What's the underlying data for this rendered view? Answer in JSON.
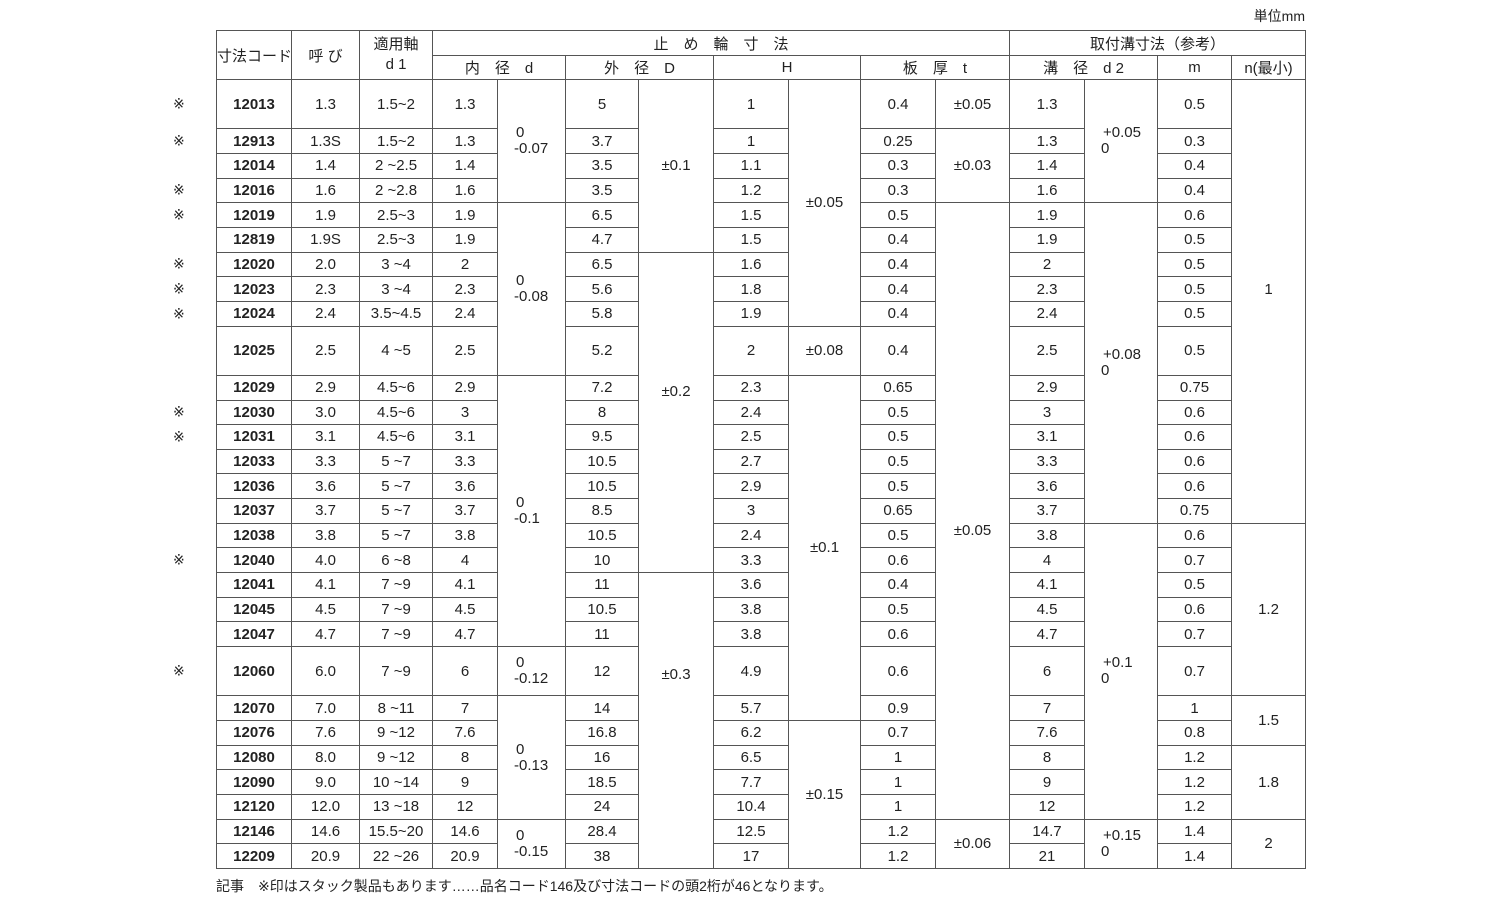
{
  "unit_label": "単位mm",
  "header": {
    "code": "寸法コード",
    "nominal": "呼 び",
    "shaft": "適用軸",
    "shaft_sym": "d 1",
    "ring_dims": "止　め　輪　寸　法",
    "groove_dims": "取付溝寸法（参考）",
    "inner": "内　径　d",
    "outer": "外　径　D",
    "h": "H",
    "thickness": "板　厚　t",
    "groove_dia": "溝　径　d 2",
    "m": "m",
    "n": "n(最小)"
  },
  "rows": [
    {
      "mark": "※",
      "code": "12013",
      "nominal": "1.3",
      "shaft": "1.5~2",
      "d": "1.3",
      "D": "5",
      "H": "1",
      "t": "0.4",
      "d2": "1.3",
      "m": "0.5",
      "tall": true
    },
    {
      "mark": "※",
      "code": "12913",
      "nominal": "1.3S",
      "shaft": "1.5~2",
      "d": "1.3",
      "D": "3.7",
      "H": "1",
      "t": "0.25",
      "d2": "1.3",
      "m": "0.3"
    },
    {
      "mark": "",
      "code": "12014",
      "nominal": "1.4",
      "shaft": "2 ~2.5",
      "d": "1.4",
      "D": "3.5",
      "H": "1.1",
      "t": "0.3",
      "d2": "1.4",
      "m": "0.4"
    },
    {
      "mark": "※",
      "code": "12016",
      "nominal": "1.6",
      "shaft": "2 ~2.8",
      "d": "1.6",
      "D": "3.5",
      "H": "1.2",
      "t": "0.3",
      "d2": "1.6",
      "m": "0.4"
    },
    {
      "mark": "※",
      "code": "12019",
      "nominal": "1.9",
      "shaft": "2.5~3",
      "d": "1.9",
      "D": "6.5",
      "H": "1.5",
      "t": "0.5",
      "d2": "1.9",
      "m": "0.6"
    },
    {
      "mark": "",
      "code": "12819",
      "nominal": "1.9S",
      "shaft": "2.5~3",
      "d": "1.9",
      "D": "4.7",
      "H": "1.5",
      "t": "0.4",
      "d2": "1.9",
      "m": "0.5"
    },
    {
      "mark": "※",
      "code": "12020",
      "nominal": "2.0",
      "shaft": "3 ~4",
      "d": "2",
      "D": "6.5",
      "H": "1.6",
      "t": "0.4",
      "d2": "2",
      "m": "0.5"
    },
    {
      "mark": "※",
      "code": "12023",
      "nominal": "2.3",
      "shaft": "3 ~4",
      "d": "2.3",
      "D": "5.6",
      "H": "1.8",
      "t": "0.4",
      "d2": "2.3",
      "m": "0.5"
    },
    {
      "mark": "※",
      "code": "12024",
      "nominal": "2.4",
      "shaft": "3.5~4.5",
      "d": "2.4",
      "D": "5.8",
      "H": "1.9",
      "t": "0.4",
      "d2": "2.4",
      "m": "0.5"
    },
    {
      "mark": "",
      "code": "12025",
      "nominal": "2.5",
      "shaft": "4 ~5",
      "d": "2.5",
      "D": "5.2",
      "H": "2",
      "t": "0.4",
      "d2": "2.5",
      "m": "0.5",
      "tall": true
    },
    {
      "mark": "",
      "code": "12029",
      "nominal": "2.9",
      "shaft": "4.5~6",
      "d": "2.9",
      "D": "7.2",
      "H": "2.3",
      "t": "0.65",
      "d2": "2.9",
      "m": "0.75"
    },
    {
      "mark": "※",
      "code": "12030",
      "nominal": "3.0",
      "shaft": "4.5~6",
      "d": "3",
      "D": "8",
      "H": "2.4",
      "t": "0.5",
      "d2": "3",
      "m": "0.6"
    },
    {
      "mark": "※",
      "code": "12031",
      "nominal": "3.1",
      "shaft": "4.5~6",
      "d": "3.1",
      "D": "9.5",
      "H": "2.5",
      "t": "0.5",
      "d2": "3.1",
      "m": "0.6"
    },
    {
      "mark": "",
      "code": "12033",
      "nominal": "3.3",
      "shaft": "5 ~7",
      "d": "3.3",
      "D": "10.5",
      "H": "2.7",
      "t": "0.5",
      "d2": "3.3",
      "m": "0.6"
    },
    {
      "mark": "",
      "code": "12036",
      "nominal": "3.6",
      "shaft": "5 ~7",
      "d": "3.6",
      "D": "10.5",
      "H": "2.9",
      "t": "0.5",
      "d2": "3.6",
      "m": "0.6"
    },
    {
      "mark": "",
      "code": "12037",
      "nominal": "3.7",
      "shaft": "5 ~7",
      "d": "3.7",
      "D": "8.5",
      "H": "3",
      "t": "0.65",
      "d2": "3.7",
      "m": "0.75"
    },
    {
      "mark": "",
      "code": "12038",
      "nominal": "3.8",
      "shaft": "5 ~7",
      "d": "3.8",
      "D": "10.5",
      "H": "2.4",
      "t": "0.5",
      "d2": "3.8",
      "m": "0.6"
    },
    {
      "mark": "※",
      "code": "12040",
      "nominal": "4.0",
      "shaft": "6 ~8",
      "d": "4",
      "D": "10",
      "H": "3.3",
      "t": "0.6",
      "d2": "4",
      "m": "0.7"
    },
    {
      "mark": "",
      "code": "12041",
      "nominal": "4.1",
      "shaft": "7 ~9",
      "d": "4.1",
      "D": "11",
      "H": "3.6",
      "t": "0.4",
      "d2": "4.1",
      "m": "0.5"
    },
    {
      "mark": "",
      "code": "12045",
      "nominal": "4.5",
      "shaft": "7 ~9",
      "d": "4.5",
      "D": "10.5",
      "H": "3.8",
      "t": "0.5",
      "d2": "4.5",
      "m": "0.6"
    },
    {
      "mark": "",
      "code": "12047",
      "nominal": "4.7",
      "shaft": "7 ~9",
      "d": "4.7",
      "D": "11",
      "H": "3.8",
      "t": "0.6",
      "d2": "4.7",
      "m": "0.7"
    },
    {
      "mark": "※",
      "code": "12060",
      "nominal": "6.0",
      "shaft": "7 ~9",
      "d": "6",
      "D": "12",
      "H": "4.9",
      "t": "0.6",
      "d2": "6",
      "m": "0.7",
      "tall": true
    },
    {
      "mark": "",
      "code": "12070",
      "nominal": "7.0",
      "shaft": "8 ~11",
      "d": "7",
      "D": "14",
      "H": "5.7",
      "t": "0.9",
      "d2": "7",
      "m": "1"
    },
    {
      "mark": "",
      "code": "12076",
      "nominal": "7.6",
      "shaft": "9 ~12",
      "d": "7.6",
      "D": "16.8",
      "H": "6.2",
      "t": "0.7",
      "d2": "7.6",
      "m": "0.8"
    },
    {
      "mark": "",
      "code": "12080",
      "nominal": "8.0",
      "shaft": "9 ~12",
      "d": "8",
      "D": "16",
      "H": "6.5",
      "t": "1",
      "d2": "8",
      "m": "1.2"
    },
    {
      "mark": "",
      "code": "12090",
      "nominal": "9.0",
      "shaft": "10 ~14",
      "d": "9",
      "D": "18.5",
      "H": "7.7",
      "t": "1",
      "d2": "9",
      "m": "1.2"
    },
    {
      "mark": "",
      "code": "12120",
      "nominal": "12.0",
      "shaft": "13 ~18",
      "d": "12",
      "D": "24",
      "H": "10.4",
      "t": "1",
      "d2": "12",
      "m": "1.2"
    },
    {
      "mark": "",
      "code": "12146",
      "nominal": "14.6",
      "shaft": "15.5~20",
      "d": "14.6",
      "D": "28.4",
      "H": "12.5",
      "t": "1.2",
      "d2": "14.7",
      "m": "1.4"
    },
    {
      "mark": "",
      "code": "12209",
      "nominal": "20.9",
      "shaft": "22 ~26",
      "d": "20.9",
      "D": "38",
      "H": "17",
      "t": "1.2",
      "d2": "21",
      "m": "1.4"
    }
  ],
  "tolerances": {
    "d": [
      {
        "upper": "0",
        "lower": "-0.07",
        "rows": 4
      },
      {
        "upper": "0",
        "lower": "-0.08",
        "rows": 6
      },
      {
        "upper": "0",
        "lower": "-0.1",
        "rows": 11
      },
      {
        "upper": "0",
        "lower": "-0.12",
        "rows": 1
      },
      {
        "upper": "0",
        "lower": "-0.13",
        "rows": 5
      },
      {
        "upper": "0",
        "lower": "-0.15",
        "rows": 2
      }
    ],
    "D": [
      {
        "value": "±0.1",
        "rows": 6
      },
      {
        "value": "±0.2",
        "rows": 12
      },
      {
        "value": "±0.3",
        "rows": 11
      }
    ],
    "H": [
      {
        "value": "±0.05",
        "rows": 9
      },
      {
        "value": "±0.08",
        "rows": 1
      },
      {
        "value": "±0.1",
        "rows": 13
      },
      {
        "value": "±0.15",
        "rows": 6
      }
    ],
    "t": [
      {
        "value": "±0.05",
        "rows": 1
      },
      {
        "value": "±0.03",
        "rows": 3
      },
      {
        "value": "±0.05",
        "rows": 23
      },
      {
        "value": "±0.06",
        "rows": 2
      }
    ],
    "d2": [
      {
        "upper": "+0.05",
        "lower": "0",
        "rows": 4
      },
      {
        "upper": "+0.08",
        "lower": "0",
        "rows": 12
      },
      {
        "upper": "+0.1",
        "lower": "0",
        "rows": 11
      },
      {
        "upper": "+0.15",
        "lower": "0",
        "rows": 2
      }
    ],
    "n": [
      {
        "value": "1",
        "rows": 16
      },
      {
        "value": "1.2",
        "rows": 6
      },
      {
        "value": "1.5",
        "rows": 2
      },
      {
        "value": "1.8",
        "rows": 3
      },
      {
        "value": "2",
        "rows": 2
      }
    ]
  },
  "note": "記事　※印はスタック製品もあります……品名コード146及び寸法コードの頭2桁が46となります。"
}
